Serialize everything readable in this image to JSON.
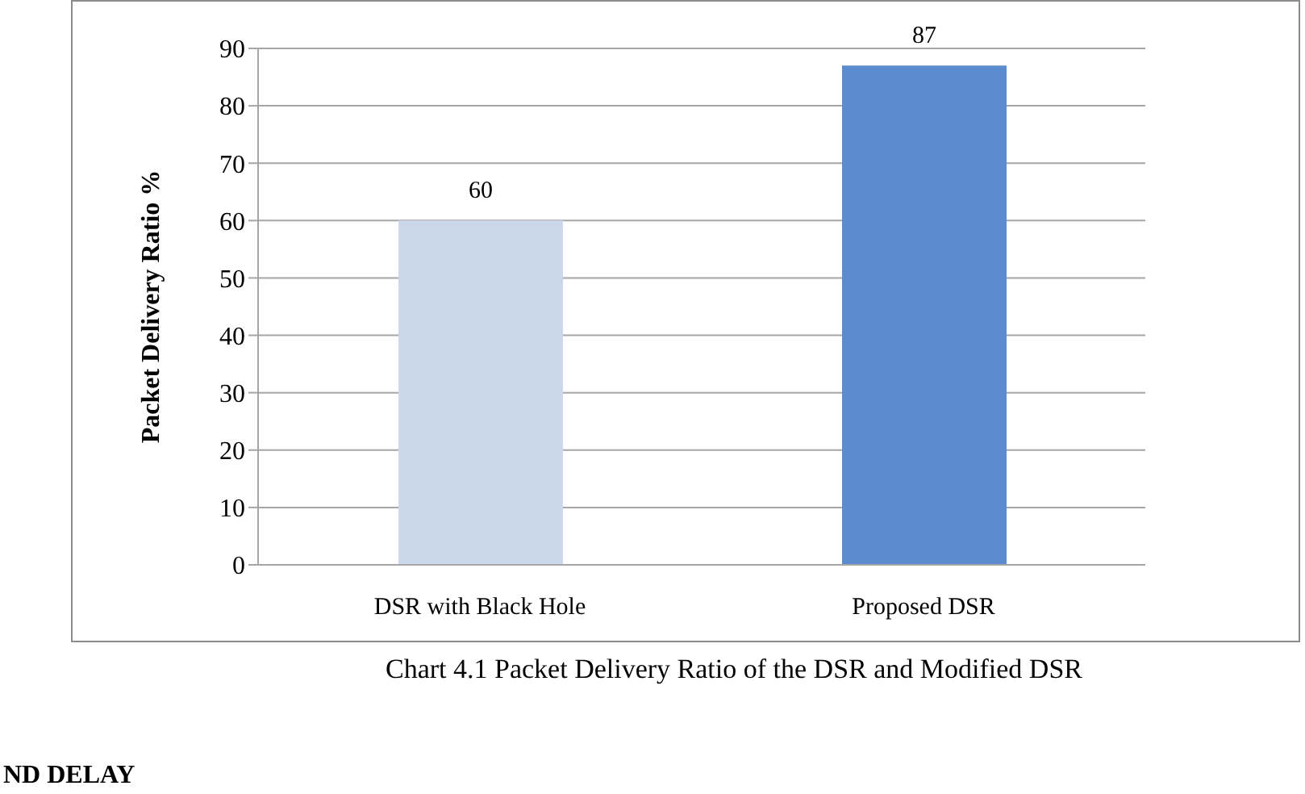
{
  "chart_data": {
    "type": "bar",
    "ylabel": "Packet Delivery Ratio %",
    "categories": [
      "DSR with Black Hole",
      "Proposed DSR"
    ],
    "values": [
      60,
      87
    ],
    "colors": [
      "#cbd8ec",
      "#5b8bd1"
    ],
    "ylim": [
      0,
      90
    ],
    "yticks": [
      0,
      10,
      20,
      30,
      40,
      50,
      60,
      70,
      80,
      90
    ],
    "grid": "y",
    "data_labels": true,
    "annotations": [
      "Chart 4.1 Packet Delivery Ratio of the DSR and Modified DSR",
      "ND DELAY"
    ]
  }
}
